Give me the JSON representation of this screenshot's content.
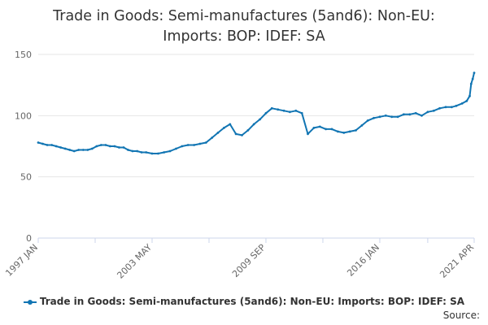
{
  "chart_data": {
    "type": "line",
    "title_lines": [
      "Trade in Goods: Semi-manufactures (5and6): Non-EU:",
      "Imports: BOP: IDEF: SA"
    ],
    "x_ticks": [
      "1997 JAN",
      "2003 MAY",
      "2009 SEP",
      "2016 JAN",
      "2021 APR"
    ],
    "xlim": [
      "1997-01",
      "2021-04"
    ],
    "ylim": [
      0,
      150
    ],
    "y_ticks": [
      0,
      50,
      100,
      150
    ],
    "grid": true,
    "legend_position": "bottom",
    "line_color": "#1175b3",
    "series": [
      {
        "name": "Trade in Goods: Semi-manufactures (5and6): Non-EU: Imports: BOP: IDEF: SA",
        "x": [
          "1997-01",
          "1997-04",
          "1997-07",
          "1997-10",
          "1998-01",
          "1998-04",
          "1998-07",
          "1998-10",
          "1999-01",
          "1999-04",
          "1999-07",
          "1999-10",
          "2000-01",
          "2000-04",
          "2000-07",
          "2000-10",
          "2001-01",
          "2001-04",
          "2001-07",
          "2001-10",
          "2002-01",
          "2002-04",
          "2002-07",
          "2002-10",
          "2003-01",
          "2003-05",
          "2003-09",
          "2004-01",
          "2004-05",
          "2004-09",
          "2005-01",
          "2005-05",
          "2005-09",
          "2006-01",
          "2006-05",
          "2006-09",
          "2007-01",
          "2007-05",
          "2007-09",
          "2008-01",
          "2008-05",
          "2008-09",
          "2009-01",
          "2009-05",
          "2009-09",
          "2010-01",
          "2010-05",
          "2010-09",
          "2011-01",
          "2011-05",
          "2011-09",
          "2012-01",
          "2012-05",
          "2012-09",
          "2013-01",
          "2013-05",
          "2013-09",
          "2014-01",
          "2014-05",
          "2014-09",
          "2015-01",
          "2015-05",
          "2015-09",
          "2016-01",
          "2016-05",
          "2016-09",
          "2017-01",
          "2017-05",
          "2017-09",
          "2018-01",
          "2018-05",
          "2018-09",
          "2019-01",
          "2019-05",
          "2019-09",
          "2020-01",
          "2020-04",
          "2020-08",
          "2020-11",
          "2021-01",
          "2021-02",
          "2021-03",
          "2021-04"
        ],
        "values": [
          78,
          77,
          76,
          76,
          75,
          74,
          73,
          72,
          71,
          72,
          72,
          72,
          73,
          75,
          76,
          76,
          75,
          75,
          74,
          74,
          72,
          71,
          71,
          70,
          70,
          69,
          69,
          70,
          71,
          73,
          75,
          76,
          76,
          77,
          78,
          82,
          86,
          90,
          93,
          85,
          84,
          88,
          93,
          97,
          102,
          106,
          105,
          104,
          103,
          104,
          102,
          85,
          90,
          91,
          89,
          89,
          87,
          86,
          87,
          88,
          92,
          96,
          98,
          99,
          100,
          99,
          99,
          101,
          101,
          102,
          100,
          103,
          104,
          106,
          107,
          107,
          108,
          110,
          112,
          116,
          126,
          130,
          135
        ]
      }
    ],
    "source_label": "Source:"
  }
}
